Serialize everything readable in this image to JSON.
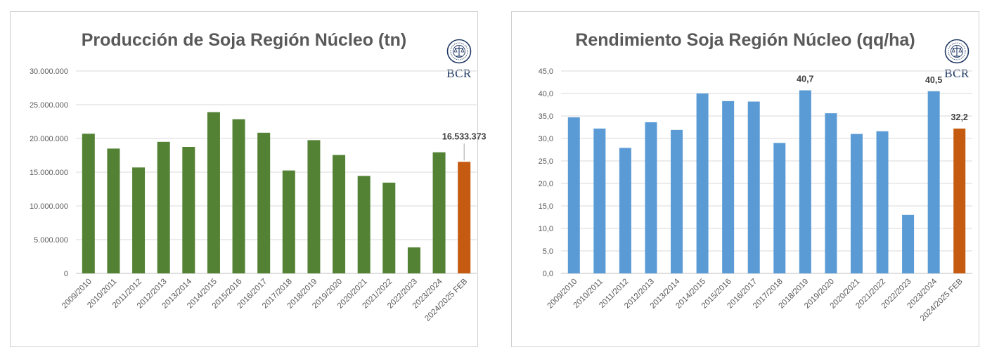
{
  "chart_data": [
    {
      "type": "bar",
      "title": "Producción de Soja Región Núcleo (tn)",
      "logo_text": "BCR",
      "categories": [
        "2009/2010",
        "2010/2011",
        "2011/2012",
        "2012/2013",
        "2013/2014",
        "2014/2015",
        "2015/2016",
        "2016/2017",
        "2017/2018",
        "2018/2019",
        "2019/2020",
        "2020/2021",
        "2021/2022",
        "2022/2023",
        "2023/2024",
        "2024/2025 FEB"
      ],
      "values": [
        20700000,
        18500000,
        15700000,
        19500000,
        18750000,
        23900000,
        22850000,
        20850000,
        15250000,
        19750000,
        17550000,
        14450000,
        13450000,
        3850000,
        17950000,
        16533373
      ],
      "ylim": [
        0,
        30000000
      ],
      "yticks": [
        "0",
        "5.000.000",
        "10.000.000",
        "15.000.000",
        "20.000.000",
        "25.000.000",
        "30.000.000"
      ],
      "grid": true,
      "data_labels": [
        {
          "index": 15,
          "text": "16.533.373"
        }
      ],
      "colors": {
        "default": "#548235",
        "highlight": "#c55a11"
      }
    },
    {
      "type": "bar",
      "title": "Rendimiento Soja Región Núcleo (qq/ha)",
      "logo_text": "BCR",
      "categories": [
        "2009/2010",
        "2010/2011",
        "2011/2012",
        "2012/2013",
        "2013/2014",
        "2014/2015",
        "2015/2016",
        "2016/2017",
        "2017/2018",
        "2018/2019",
        "2019/2020",
        "2020/2021",
        "2021/2022",
        "2022/2023",
        "2023/2024",
        "2024/2025 FEB"
      ],
      "values": [
        34.7,
        32.2,
        27.9,
        33.6,
        31.9,
        40.0,
        38.3,
        38.2,
        29.0,
        40.7,
        35.6,
        31.0,
        31.6,
        13.0,
        40.5,
        32.2
      ],
      "ylim": [
        0,
        45
      ],
      "yticks": [
        "0,0",
        "5,0",
        "10,0",
        "15,0",
        "20,0",
        "25,0",
        "30,0",
        "35,0",
        "40,0",
        "45,0"
      ],
      "grid": true,
      "data_labels": [
        {
          "index": 9,
          "text": "40,7"
        },
        {
          "index": 14,
          "text": "40,5"
        },
        {
          "index": 15,
          "text": "32,2"
        }
      ],
      "colors": {
        "default": "#5b9bd5",
        "highlight": "#c55a11"
      }
    }
  ]
}
